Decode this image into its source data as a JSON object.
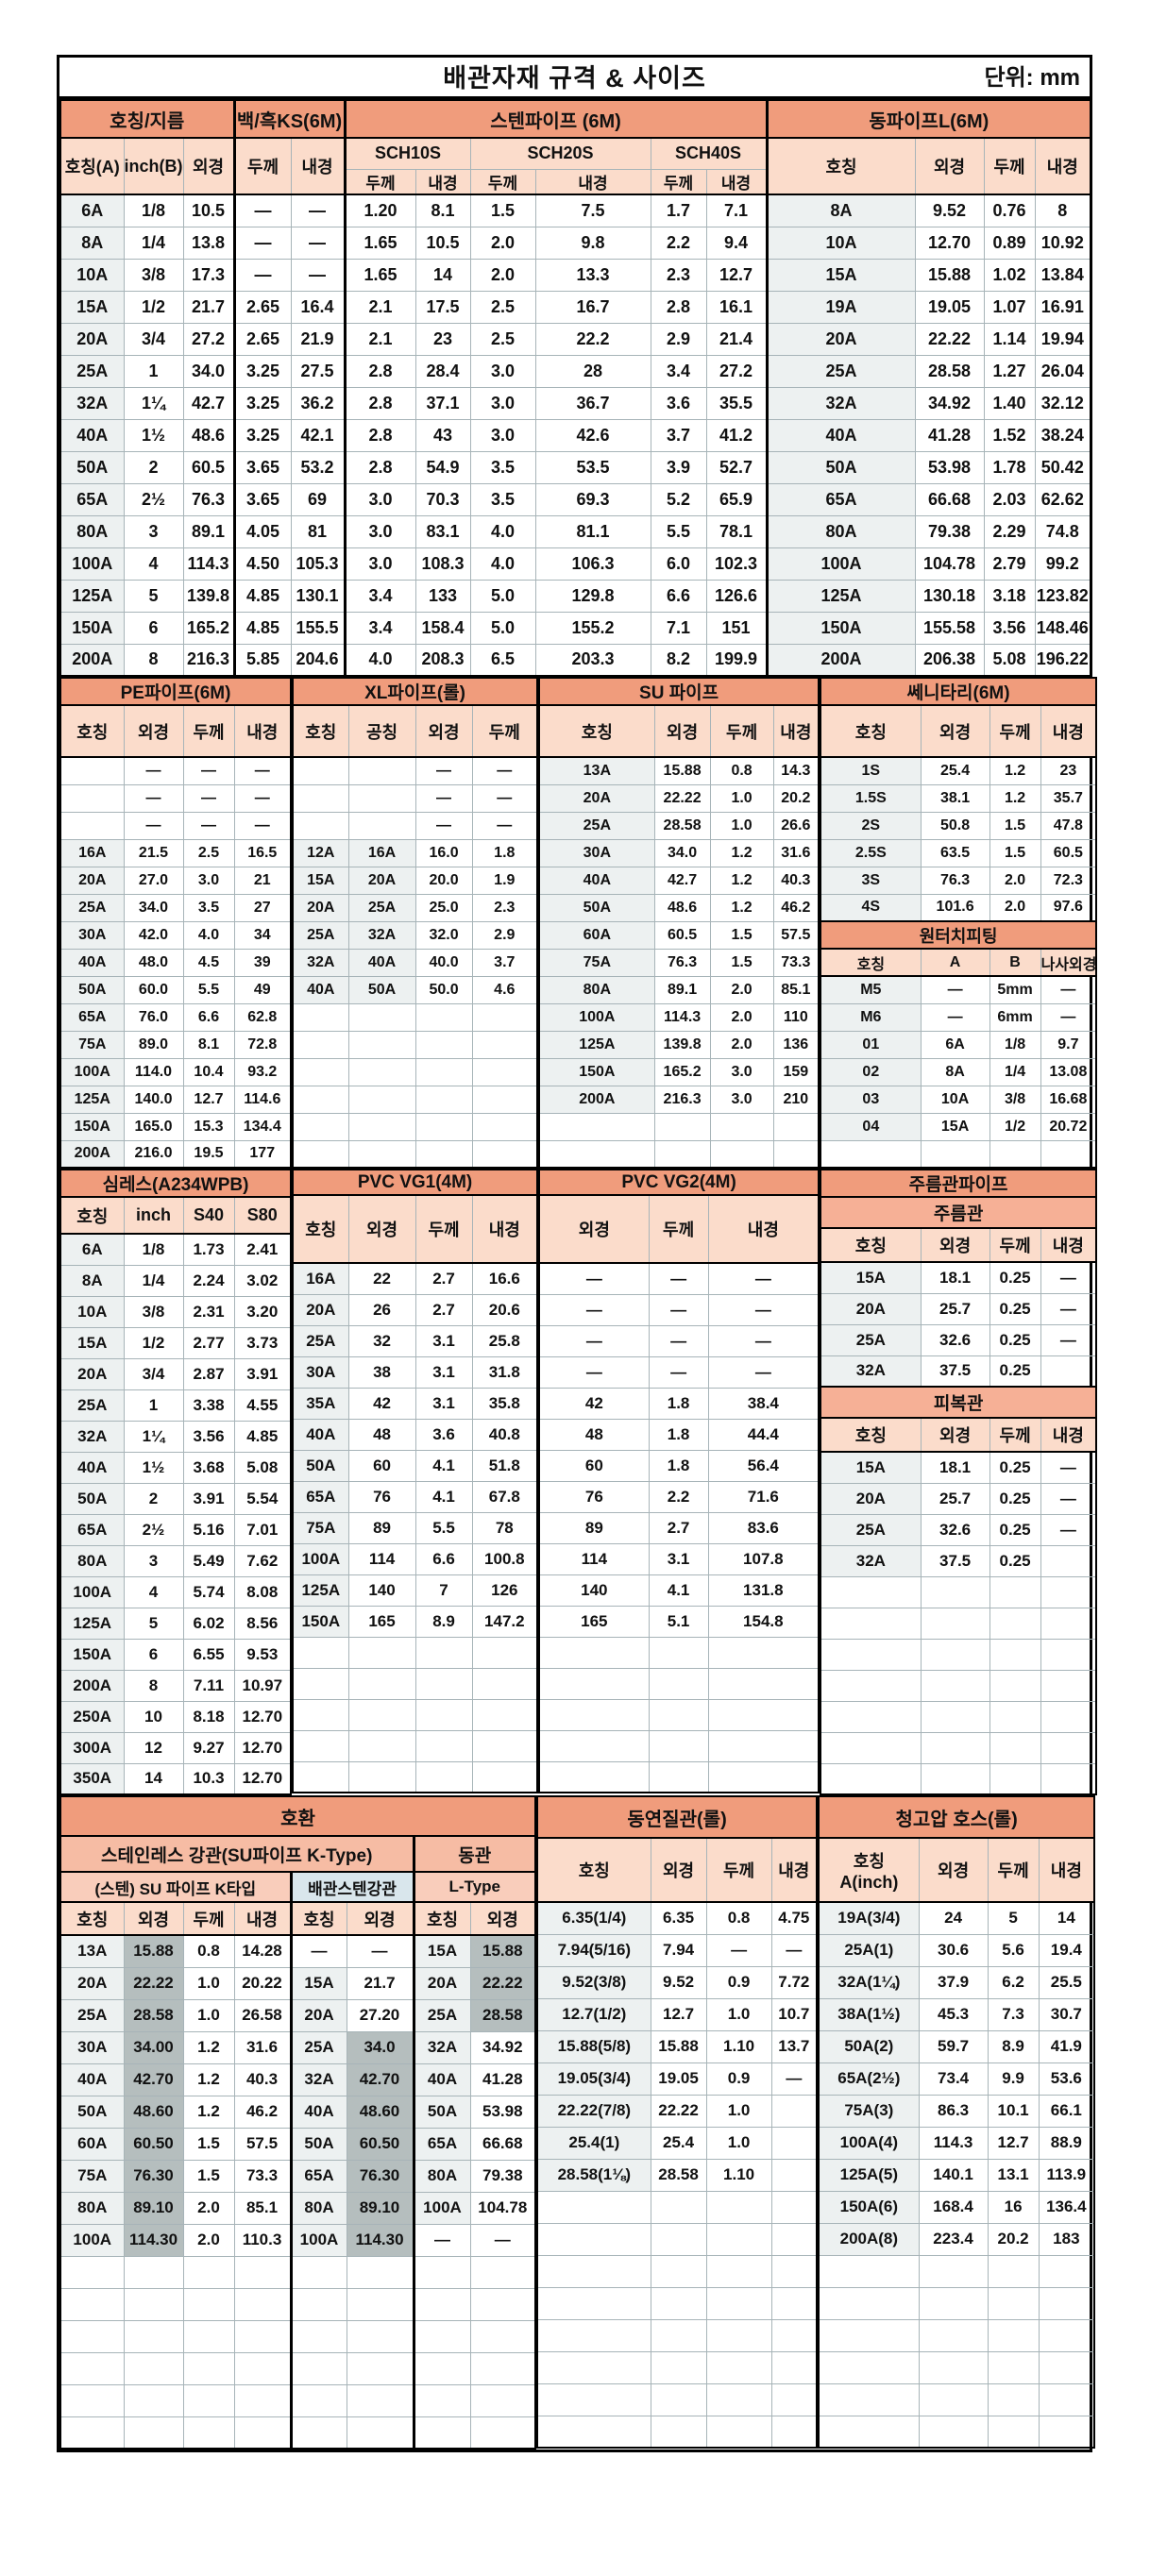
{
  "title": "배관자재 규격 & 사이즈",
  "unit_label": "단위: mm",
  "colors": {
    "section_header": "#F09C7C",
    "sub_header": "#F6B096",
    "column_header": "#FBDCCB",
    "compat_group_header": "#F6BCA4",
    "row_label_bg": "#EDF1F1",
    "match_highlight": "#B5BEBE",
    "blue_cell": "#D9E6EC",
    "grid_line": "#A7B4B8"
  },
  "t1": {
    "groups": [
      "호칭/지름",
      "백/흑KS(6M)",
      "스텐파이프 (6M)",
      "동파이프L(6M)"
    ],
    "sub": [
      "호칭(A)",
      "inch(B)",
      "외경",
      "두께",
      "내경"
    ],
    "sch": [
      "SCH10S",
      "SCH20S",
      "SCH40S"
    ],
    "tn": [
      "두께",
      "내경"
    ],
    "cu": [
      "호칭",
      "외경",
      "두께",
      "내경"
    ],
    "rows": [
      [
        "6A",
        "1/8",
        "10.5",
        "—",
        "—",
        "1.20",
        "8.1",
        "1.5",
        "7.5",
        "1.7",
        "7.1",
        "8A",
        "9.52",
        "0.76",
        "8"
      ],
      [
        "8A",
        "1/4",
        "13.8",
        "—",
        "—",
        "1.65",
        "10.5",
        "2.0",
        "9.8",
        "2.2",
        "9.4",
        "10A",
        "12.70",
        "0.89",
        "10.92"
      ],
      [
        "10A",
        "3/8",
        "17.3",
        "—",
        "—",
        "1.65",
        "14",
        "2.0",
        "13.3",
        "2.3",
        "12.7",
        "15A",
        "15.88",
        "1.02",
        "13.84"
      ],
      [
        "15A",
        "1/2",
        "21.7",
        "2.65",
        "16.4",
        "2.1",
        "17.5",
        "2.5",
        "16.7",
        "2.8",
        "16.1",
        "19A",
        "19.05",
        "1.07",
        "16.91"
      ],
      [
        "20A",
        "3/4",
        "27.2",
        "2.65",
        "21.9",
        "2.1",
        "23",
        "2.5",
        "22.2",
        "2.9",
        "21.4",
        "20A",
        "22.22",
        "1.14",
        "19.94"
      ],
      [
        "25A",
        "1",
        "34.0",
        "3.25",
        "27.5",
        "2.8",
        "28.4",
        "3.0",
        "28",
        "3.4",
        "27.2",
        "25A",
        "28.58",
        "1.27",
        "26.04"
      ],
      [
        "32A",
        "1¼",
        "42.7",
        "3.25",
        "36.2",
        "2.8",
        "37.1",
        "3.0",
        "36.7",
        "3.6",
        "35.5",
        "32A",
        "34.92",
        "1.40",
        "32.12"
      ],
      [
        "40A",
        "1½",
        "48.6",
        "3.25",
        "42.1",
        "2.8",
        "43",
        "3.0",
        "42.6",
        "3.7",
        "41.2",
        "40A",
        "41.28",
        "1.52",
        "38.24"
      ],
      [
        "50A",
        "2",
        "60.5",
        "3.65",
        "53.2",
        "2.8",
        "54.9",
        "3.5",
        "53.5",
        "3.9",
        "52.7",
        "50A",
        "53.98",
        "1.78",
        "50.42"
      ],
      [
        "65A",
        "2½",
        "76.3",
        "3.65",
        "69",
        "3.0",
        "70.3",
        "3.5",
        "69.3",
        "5.2",
        "65.9",
        "65A",
        "66.68",
        "2.03",
        "62.62"
      ],
      [
        "80A",
        "3",
        "89.1",
        "4.05",
        "81",
        "3.0",
        "83.1",
        "4.0",
        "81.1",
        "5.5",
        "78.1",
        "80A",
        "79.38",
        "2.29",
        "74.8"
      ],
      [
        "100A",
        "4",
        "114.3",
        "4.50",
        "105.3",
        "3.0",
        "108.3",
        "4.0",
        "106.3",
        "6.0",
        "102.3",
        "100A",
        "104.78",
        "2.79",
        "99.2"
      ],
      [
        "125A",
        "5",
        "139.8",
        "4.85",
        "130.1",
        "3.4",
        "133",
        "5.0",
        "129.8",
        "6.6",
        "126.6",
        "125A",
        "130.18",
        "3.18",
        "123.82"
      ],
      [
        "150A",
        "6",
        "165.2",
        "4.85",
        "155.5",
        "3.4",
        "158.4",
        "5.0",
        "155.2",
        "7.1",
        "151",
        "150A",
        "155.58",
        "3.56",
        "148.46"
      ],
      [
        "200A",
        "8",
        "216.3",
        "5.85",
        "204.6",
        "4.0",
        "208.3",
        "6.5",
        "203.3",
        "8.2",
        "199.9",
        "200A",
        "206.38",
        "5.08",
        "196.22"
      ]
    ]
  },
  "pe": {
    "title": "PE파이프(6M)",
    "cols": [
      "호칭",
      "외경",
      "두께",
      "내경"
    ],
    "rows": [
      [
        "",
        "—",
        "—",
        "—"
      ],
      [
        "",
        "—",
        "—",
        "—"
      ],
      [
        "",
        "—",
        "—",
        "—"
      ],
      [
        "16A",
        "21.5",
        "2.5",
        "16.5"
      ],
      [
        "20A",
        "27.0",
        "3.0",
        "21"
      ],
      [
        "25A",
        "34.0",
        "3.5",
        "27"
      ],
      [
        "30A",
        "42.0",
        "4.0",
        "34"
      ],
      [
        "40A",
        "48.0",
        "4.5",
        "39"
      ],
      [
        "50A",
        "60.0",
        "5.5",
        "49"
      ],
      [
        "65A",
        "76.0",
        "6.6",
        "62.8"
      ],
      [
        "75A",
        "89.0",
        "8.1",
        "72.8"
      ],
      [
        "100A",
        "114.0",
        "10.4",
        "93.2"
      ],
      [
        "125A",
        "140.0",
        "12.7",
        "114.6"
      ],
      [
        "150A",
        "165.0",
        "15.3",
        "134.4"
      ],
      [
        "200A",
        "216.0",
        "19.5",
        "177"
      ]
    ]
  },
  "xl": {
    "title": "XL파이프(롤)",
    "cols": [
      "호칭",
      "공칭",
      "외경",
      "두께"
    ],
    "rows": [
      [
        "",
        "",
        "—",
        "—"
      ],
      [
        "",
        "",
        "—",
        "—"
      ],
      [
        "",
        "",
        "—",
        "—"
      ],
      [
        "12A",
        "16A",
        "16.0",
        "1.8"
      ],
      [
        "15A",
        "20A",
        "20.0",
        "1.9"
      ],
      [
        "20A",
        "25A",
        "25.0",
        "2.3"
      ],
      [
        "25A",
        "32A",
        "32.0",
        "2.9"
      ],
      [
        "32A",
        "40A",
        "40.0",
        "3.7"
      ],
      [
        "40A",
        "50A",
        "50.0",
        "4.6"
      ]
    ]
  },
  "su": {
    "title": "SU 파이프",
    "cols": [
      "호칭",
      "외경",
      "두께",
      "내경"
    ],
    "rows": [
      [
        "13A",
        "15.88",
        "0.8",
        "14.3"
      ],
      [
        "20A",
        "22.22",
        "1.0",
        "20.2"
      ],
      [
        "25A",
        "28.58",
        "1.0",
        "26.6"
      ],
      [
        "30A",
        "34.0",
        "1.2",
        "31.6"
      ],
      [
        "40A",
        "42.7",
        "1.2",
        "40.3"
      ],
      [
        "50A",
        "48.6",
        "1.2",
        "46.2"
      ],
      [
        "60A",
        "60.5",
        "1.5",
        "57.5"
      ],
      [
        "75A",
        "76.3",
        "1.5",
        "73.3"
      ],
      [
        "80A",
        "89.1",
        "2.0",
        "85.1"
      ],
      [
        "100A",
        "114.3",
        "2.0",
        "110"
      ],
      [
        "125A",
        "139.8",
        "2.0",
        "136"
      ],
      [
        "150A",
        "165.2",
        "3.0",
        "159"
      ],
      [
        "200A",
        "216.3",
        "3.0",
        "210"
      ]
    ]
  },
  "sanitary": {
    "title": "쎄니타리(6M)",
    "cols": [
      "호칭",
      "외경",
      "두께",
      "내경"
    ],
    "rows": [
      [
        "1S",
        "25.4",
        "1.2",
        "23"
      ],
      [
        "1.5S",
        "38.1",
        "1.2",
        "35.7"
      ],
      [
        "2S",
        "50.8",
        "1.5",
        "47.8"
      ],
      [
        "2.5S",
        "63.5",
        "1.5",
        "60.5"
      ],
      [
        "3S",
        "76.3",
        "2.0",
        "72.3"
      ],
      [
        "4S",
        "101.6",
        "2.0",
        "97.6"
      ]
    ]
  },
  "onetouch": {
    "title": "원터치피팅",
    "cols": [
      "호칭",
      "A",
      "B",
      "나사외경"
    ],
    "rows": [
      [
        "M5",
        "—",
        "5mm",
        "—"
      ],
      [
        "M6",
        "—",
        "6mm",
        "—"
      ],
      [
        "01",
        "6A",
        "1/8",
        "9.7"
      ],
      [
        "02",
        "8A",
        "1/4",
        "13.08"
      ],
      [
        "03",
        "10A",
        "3/8",
        "16.68"
      ],
      [
        "04",
        "15A",
        "1/2",
        "20.72"
      ]
    ]
  },
  "seamless": {
    "title": "심레스(A234WPB)",
    "cols": [
      "호칭",
      "inch",
      "S40",
      "S80"
    ],
    "rows": [
      [
        "6A",
        "1/8",
        "1.73",
        "2.41"
      ],
      [
        "8A",
        "1/4",
        "2.24",
        "3.02"
      ],
      [
        "10A",
        "3/8",
        "2.31",
        "3.20"
      ],
      [
        "15A",
        "1/2",
        "2.77",
        "3.73"
      ],
      [
        "20A",
        "3/4",
        "2.87",
        "3.91"
      ],
      [
        "25A",
        "1",
        "3.38",
        "4.55"
      ],
      [
        "32A",
        "1¼",
        "3.56",
        "4.85"
      ],
      [
        "40A",
        "1½",
        "3.68",
        "5.08"
      ],
      [
        "50A",
        "2",
        "3.91",
        "5.54"
      ],
      [
        "65A",
        "2½",
        "5.16",
        "7.01"
      ],
      [
        "80A",
        "3",
        "5.49",
        "7.62"
      ],
      [
        "100A",
        "4",
        "5.74",
        "8.08"
      ],
      [
        "125A",
        "5",
        "6.02",
        "8.56"
      ],
      [
        "150A",
        "6",
        "6.55",
        "9.53"
      ],
      [
        "200A",
        "8",
        "7.11",
        "10.97"
      ],
      [
        "250A",
        "10",
        "8.18",
        "12.70"
      ],
      [
        "300A",
        "12",
        "9.27",
        "12.70"
      ],
      [
        "350A",
        "14",
        "10.3",
        "12.70"
      ]
    ]
  },
  "vg1": {
    "title": "PVC VG1(4M)",
    "cols": [
      "호칭",
      "외경",
      "두께",
      "내경"
    ],
    "rows": [
      [
        "16A",
        "22",
        "2.7",
        "16.6"
      ],
      [
        "20A",
        "26",
        "2.7",
        "20.6"
      ],
      [
        "25A",
        "32",
        "3.1",
        "25.8"
      ],
      [
        "30A",
        "38",
        "3.1",
        "31.8"
      ],
      [
        "35A",
        "42",
        "3.1",
        "35.8"
      ],
      [
        "40A",
        "48",
        "3.6",
        "40.8"
      ],
      [
        "50A",
        "60",
        "4.1",
        "51.8"
      ],
      [
        "65A",
        "76",
        "4.1",
        "67.8"
      ],
      [
        "75A",
        "89",
        "5.5",
        "78"
      ],
      [
        "100A",
        "114",
        "6.6",
        "100.8"
      ],
      [
        "125A",
        "140",
        "7",
        "126"
      ],
      [
        "150A",
        "165",
        "8.9",
        "147.2"
      ]
    ]
  },
  "vg2": {
    "title": "PVC VG2(4M)",
    "cols": [
      "외경",
      "두께",
      "내경"
    ],
    "rows": [
      [
        "—",
        "—",
        "—"
      ],
      [
        "—",
        "—",
        "—"
      ],
      [
        "—",
        "—",
        "—"
      ],
      [
        "—",
        "—",
        "—"
      ],
      [
        "42",
        "1.8",
        "38.4"
      ],
      [
        "48",
        "1.8",
        "44.4"
      ],
      [
        "60",
        "1.8",
        "56.4"
      ],
      [
        "76",
        "2.2",
        "71.6"
      ],
      [
        "89",
        "2.7",
        "83.6"
      ],
      [
        "114",
        "3.1",
        "107.8"
      ],
      [
        "140",
        "4.1",
        "131.8"
      ],
      [
        "165",
        "5.1",
        "154.8"
      ]
    ]
  },
  "jureum": {
    "title": "주름관파이프",
    "sub1": "주름관",
    "sub2": "피복관",
    "cols": [
      "호칭",
      "외경",
      "두께",
      "내경"
    ],
    "rows1": [
      [
        "15A",
        "18.1",
        "0.25",
        "—"
      ],
      [
        "20A",
        "25.7",
        "0.25",
        "—"
      ],
      [
        "25A",
        "32.6",
        "0.25",
        "—"
      ],
      [
        "32A",
        "37.5",
        "0.25",
        ""
      ]
    ],
    "rows2": [
      [
        "15A",
        "18.1",
        "0.25",
        "—"
      ],
      [
        "20A",
        "25.7",
        "0.25",
        "—"
      ],
      [
        "25A",
        "32.6",
        "0.25",
        "—"
      ],
      [
        "32A",
        "37.5",
        "0.25",
        ""
      ]
    ]
  },
  "compat": {
    "title": "호환",
    "g1": "스테인레스 강관(SU파이프 K-Type)",
    "g2": "동관",
    "s1": "(스텐) SU 파이프 K타입",
    "s2": "배관스텐강관",
    "s3": "L-Type",
    "cols": [
      "호칭",
      "외경",
      "두께",
      "내경",
      "호칭",
      "외경",
      "호칭",
      "외경"
    ],
    "highlights": {
      "1": [
        0,
        9
      ],
      "5": [
        3,
        9
      ],
      "7": [
        0,
        2
      ]
    },
    "rows": [
      [
        "13A",
        "15.88",
        "0.8",
        "14.28",
        "—",
        "—",
        "15A",
        "15.88"
      ],
      [
        "20A",
        "22.22",
        "1.0",
        "20.22",
        "15A",
        "21.7",
        "20A",
        "22.22"
      ],
      [
        "25A",
        "28.58",
        "1.0",
        "26.58",
        "20A",
        "27.20",
        "25A",
        "28.58"
      ],
      [
        "30A",
        "34.00",
        "1.2",
        "31.6",
        "25A",
        "34.0",
        "32A",
        "34.92"
      ],
      [
        "40A",
        "42.70",
        "1.2",
        "40.3",
        "32A",
        "42.70",
        "40A",
        "41.28"
      ],
      [
        "50A",
        "48.60",
        "1.2",
        "46.2",
        "40A",
        "48.60",
        "50A",
        "53.98"
      ],
      [
        "60A",
        "60.50",
        "1.5",
        "57.5",
        "50A",
        "60.50",
        "65A",
        "66.68"
      ],
      [
        "75A",
        "76.30",
        "1.5",
        "73.3",
        "65A",
        "76.30",
        "80A",
        "79.38"
      ],
      [
        "80A",
        "89.10",
        "2.0",
        "85.1",
        "80A",
        "89.10",
        "100A",
        "104.78"
      ],
      [
        "100A",
        "114.30",
        "2.0",
        "110.3",
        "100A",
        "114.30",
        "—",
        "—"
      ]
    ]
  },
  "soft_copper": {
    "title": "동연질관(롤)",
    "cols": [
      "호칭",
      "외경",
      "두께",
      "내경"
    ],
    "rows": [
      [
        "6.35(1/4)",
        "6.35",
        "0.8",
        "4.75"
      ],
      [
        "7.94(5/16)",
        "7.94",
        "—",
        "—"
      ],
      [
        "9.52(3/8)",
        "9.52",
        "0.9",
        "7.72"
      ],
      [
        "12.7(1/2)",
        "12.7",
        "1.0",
        "10.7"
      ],
      [
        "15.88(5/8)",
        "15.88",
        "1.10",
        "13.7"
      ],
      [
        "19.05(3/4)",
        "19.05",
        "0.9",
        "—"
      ],
      [
        "22.22(7/8)",
        "22.22",
        "1.0",
        ""
      ],
      [
        "25.4(1)",
        "25.4",
        "1.0",
        ""
      ],
      [
        "28.58(1⅛)",
        "28.58",
        "1.10",
        ""
      ]
    ]
  },
  "hose": {
    "title": "청고압 호스(롤)",
    "h1": "호칭",
    "h1b": "A(inch)",
    "cols": [
      "외경",
      "두께",
      "내경"
    ],
    "rows": [
      [
        "19A(3/4)",
        "24",
        "5",
        "14"
      ],
      [
        "25A(1)",
        "30.6",
        "5.6",
        "19.4"
      ],
      [
        "32A(1¼)",
        "37.9",
        "6.2",
        "25.5"
      ],
      [
        "38A(1½)",
        "45.3",
        "7.3",
        "30.7"
      ],
      [
        "50A(2)",
        "59.7",
        "8.9",
        "41.9"
      ],
      [
        "65A(2½)",
        "73.4",
        "9.9",
        "53.6"
      ],
      [
        "75A(3)",
        "86.3",
        "10.1",
        "66.1"
      ],
      [
        "100A(4)",
        "114.3",
        "12.7",
        "88.9"
      ],
      [
        "125A(5)",
        "140.1",
        "13.1",
        "113.9"
      ],
      [
        "150A(6)",
        "168.4",
        "16",
        "136.4"
      ],
      [
        "200A(8)",
        "223.4",
        "20.2",
        "183"
      ]
    ]
  }
}
